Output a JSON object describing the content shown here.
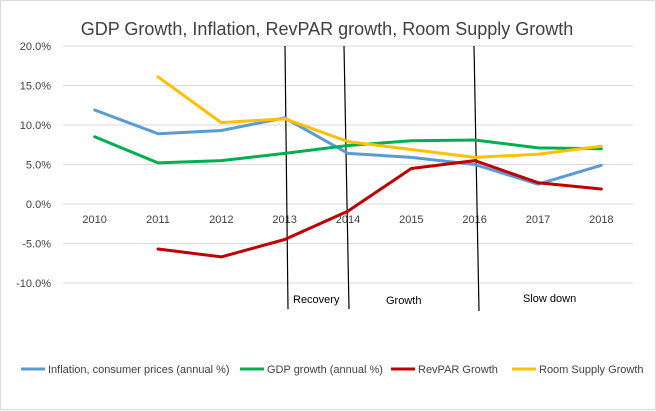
{
  "chart_data": {
    "type": "line",
    "title": "GDP Growth, Inflation, RevPAR growth, Room Supply Growth",
    "categories": [
      "2010",
      "2011",
      "2012",
      "2013",
      "2014",
      "2015",
      "2016",
      "2017",
      "2018"
    ],
    "ylim": [
      -0.1,
      0.2
    ],
    "yticks": [
      0.2,
      0.15,
      0.1,
      0.05,
      0.0,
      -0.05,
      -0.1
    ],
    "ytick_labels": [
      "20.0%",
      "15.0%",
      "10.0%",
      "5.0%",
      "0.0%",
      "-5.0%",
      "-10.0%"
    ],
    "grid": true,
    "legend_position": "bottom",
    "series": [
      {
        "name": "Inflation, consumer prices (annual %)",
        "color": "#5b9bd5",
        "values": [
          0.119,
          0.089,
          0.093,
          0.109,
          0.064,
          0.059,
          0.05,
          0.025,
          0.049
        ]
      },
      {
        "name": "GDP growth (annual %)",
        "color": "#00b050",
        "values": [
          0.085,
          0.052,
          0.055,
          0.064,
          0.074,
          0.08,
          0.081,
          0.071,
          0.07
        ]
      },
      {
        "name": "RevPAR Growth",
        "color": "#c00000",
        "values": [
          null,
          -0.057,
          -0.067,
          -0.045,
          -0.009,
          0.045,
          0.055,
          0.027,
          0.019
        ]
      },
      {
        "name": "Room Supply Growth",
        "color": "#ffc000",
        "values": [
          null,
          0.161,
          0.103,
          0.108,
          0.079,
          0.069,
          0.059,
          0.063,
          0.073
        ]
      }
    ],
    "annotations": [
      {
        "text": "Recovery",
        "after_category": "2013"
      },
      {
        "text": "Growth",
        "after_category": "2014"
      },
      {
        "text": "Slow down",
        "after_category": "2016"
      }
    ]
  }
}
